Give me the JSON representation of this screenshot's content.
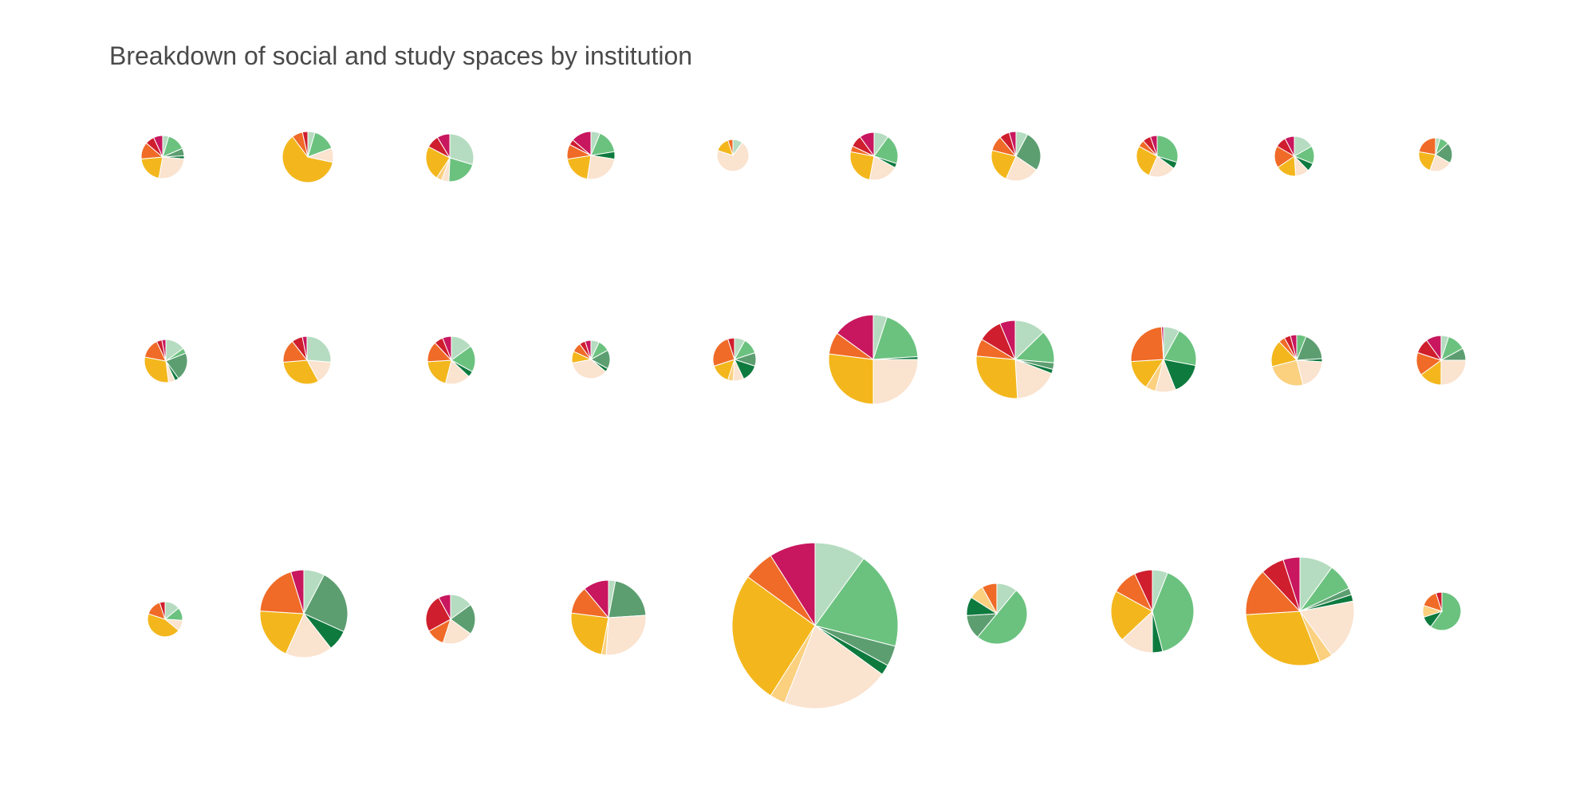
{
  "chart_data": {
    "type": "pie",
    "title": "Breakdown of social and study spaces by institution",
    "palette": [
      "#b5dcc0",
      "#6bc27f",
      "#5c9e70",
      "#0e7a3e",
      "#fae3cf",
      "#fbd07f",
      "#f3b71d",
      "#f06b27",
      "#cf1e2d",
      "#c8175e"
    ],
    "grid": {
      "rows": 3,
      "columns": 10
    },
    "pies": [
      {
        "size": 27,
        "slices": [
          4,
          12,
          5,
          2,
          23,
          0,
          18,
          11,
          6,
          6
        ]
      },
      {
        "size": 32,
        "slices": [
          4,
          13,
          0,
          0,
          8,
          0,
          54,
          6,
          3,
          0
        ]
      },
      {
        "size": 30,
        "slices": [
          24,
          17,
          0,
          0,
          4,
          3,
          19,
          0,
          7,
          7
        ]
      },
      {
        "size": 30,
        "slices": [
          5,
          13,
          0,
          4,
          20,
          0,
          16,
          8,
          3,
          11
        ]
      },
      {
        "size": 20,
        "slices": [
          10,
          0,
          0,
          0,
          70,
          0,
          15,
          5,
          0,
          0
        ]
      },
      {
        "size": 30,
        "slices": [
          10,
          20,
          0,
          3,
          20,
          0,
          25,
          4,
          8,
          10
        ]
      },
      {
        "size": 31,
        "slices": [
          7,
          0,
          24,
          0,
          20,
          0,
          20,
          9,
          6,
          4
        ]
      },
      {
        "size": 26,
        "slices": [
          0,
          28,
          0,
          5,
          20,
          0,
          25,
          5,
          6,
          5
        ]
      },
      {
        "size": 25,
        "slices": [
          15,
          13,
          0,
          6,
          10,
          0,
          15,
          16,
          8,
          7
        ]
      },
      {
        "size": 21,
        "slices": [
          4,
          8,
          18,
          0,
          20,
          0,
          20,
          20,
          0,
          0
        ]
      },
      {
        "size": 27,
        "slices": [
          15,
          4,
          21,
          3,
          5,
          0,
          30,
          15,
          4,
          3
        ]
      },
      {
        "size": 30,
        "slices": [
          25,
          0,
          0,
          0,
          15,
          0,
          30,
          15,
          7,
          3
        ]
      },
      {
        "size": 30,
        "slices": [
          15,
          18,
          0,
          4,
          17,
          0,
          20,
          14,
          6,
          6
        ]
      },
      {
        "size": 24,
        "slices": [
          7,
          10,
          16,
          3,
          36,
          0,
          10,
          8,
          5,
          5
        ]
      },
      {
        "size": 27,
        "slices": [
          8,
          12,
          10,
          13,
          8,
          4,
          15,
          25,
          5,
          0
        ]
      },
      {
        "size": 56,
        "slices": [
          5,
          19,
          0,
          1,
          25,
          0,
          27,
          8,
          0,
          15
        ]
      },
      {
        "size": 49,
        "slices": [
          14,
          15,
          3,
          2,
          20,
          0,
          30,
          8,
          11,
          7
        ]
      },
      {
        "size": 41,
        "slices": [
          8,
          20,
          0,
          16,
          10,
          5,
          15,
          25,
          0,
          1
        ]
      },
      {
        "size": 32,
        "slices": [
          0,
          6,
          18,
          2,
          20,
          25,
          17,
          4,
          4,
          4
        ]
      },
      {
        "size": 31,
        "slices": [
          5,
          12,
          8,
          0,
          25,
          0,
          15,
          15,
          10,
          10
        ]
      },
      {
        "size": 22,
        "slices": [
          14,
          12,
          0,
          0,
          10,
          0,
          44,
          15,
          5,
          0
        ]
      },
      {
        "size": 55,
        "slices": [
          8,
          0,
          25,
          8,
          18,
          0,
          20,
          20,
          0,
          5
        ]
      },
      {
        "size": 31,
        "slices": [
          15,
          0,
          20,
          0,
          20,
          0,
          0,
          12,
          25,
          8
        ]
      },
      {
        "size": 47,
        "slices": [
          3,
          0,
          21,
          0,
          27,
          2,
          24,
          12,
          0,
          11
        ]
      },
      {
        "size": 104,
        "slices": [
          10,
          19,
          4,
          2,
          21,
          3,
          26,
          6,
          0,
          9
        ]
      },
      {
        "size": 38,
        "slices": [
          11,
          50,
          13,
          10,
          0,
          8,
          0,
          8,
          0,
          0
        ]
      },
      {
        "size": 52,
        "slices": [
          6,
          40,
          0,
          4,
          13,
          0,
          20,
          10,
          7,
          0
        ]
      },
      {
        "size": 68,
        "slices": [
          10,
          8,
          2,
          2,
          18,
          4,
          30,
          14,
          7,
          5
        ]
      },
      {
        "size": 24,
        "slices": [
          0,
          60,
          0,
          10,
          0,
          10,
          0,
          15,
          5,
          0
        ]
      },
      {
        "size": 0,
        "slices": []
      }
    ]
  }
}
